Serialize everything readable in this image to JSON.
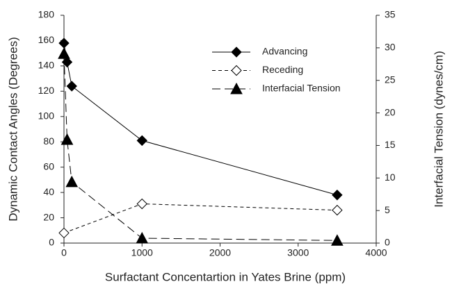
{
  "chart_data": {
    "type": "line",
    "xlabel": "Surfactant Concentartion in Yates Brine (ppm)",
    "ylabel": "Dynamic Contact Angles (Degrees)",
    "y2label": "Interfacial Tension (dynes/cm)",
    "xlim": [
      0,
      4000
    ],
    "xticks": [
      0,
      1000,
      2000,
      3000,
      4000
    ],
    "ylim": [
      0,
      180
    ],
    "yticks": [
      0,
      20,
      40,
      60,
      80,
      100,
      120,
      140,
      160,
      180
    ],
    "y2lim": [
      0,
      35
    ],
    "y2ticks": [
      0,
      5,
      10,
      15,
      20,
      25,
      30,
      35
    ],
    "legend": "top-right",
    "series": [
      {
        "name": "Advancing",
        "color": "#000000",
        "marker": "diamond",
        "dash": "solid",
        "x": [
          0,
          40,
          100,
          1000,
          3500
        ],
        "values": [
          158,
          143,
          124,
          81,
          38
        ]
      },
      {
        "name": "Receding",
        "color": "#000000",
        "marker": "diamond-open",
        "dash": "short",
        "x": [
          0,
          1000,
          3500
        ],
        "values": [
          8,
          31,
          26
        ]
      },
      {
        "name": "Interfacial Tension",
        "color": "#000000",
        "marker": "triangle",
        "dash": "long",
        "axis": "y2",
        "x": [
          0,
          40,
          100,
          1000,
          3500
        ],
        "values": [
          29.1,
          15.9,
          9.4,
          0.75,
          0.4
        ]
      }
    ]
  }
}
